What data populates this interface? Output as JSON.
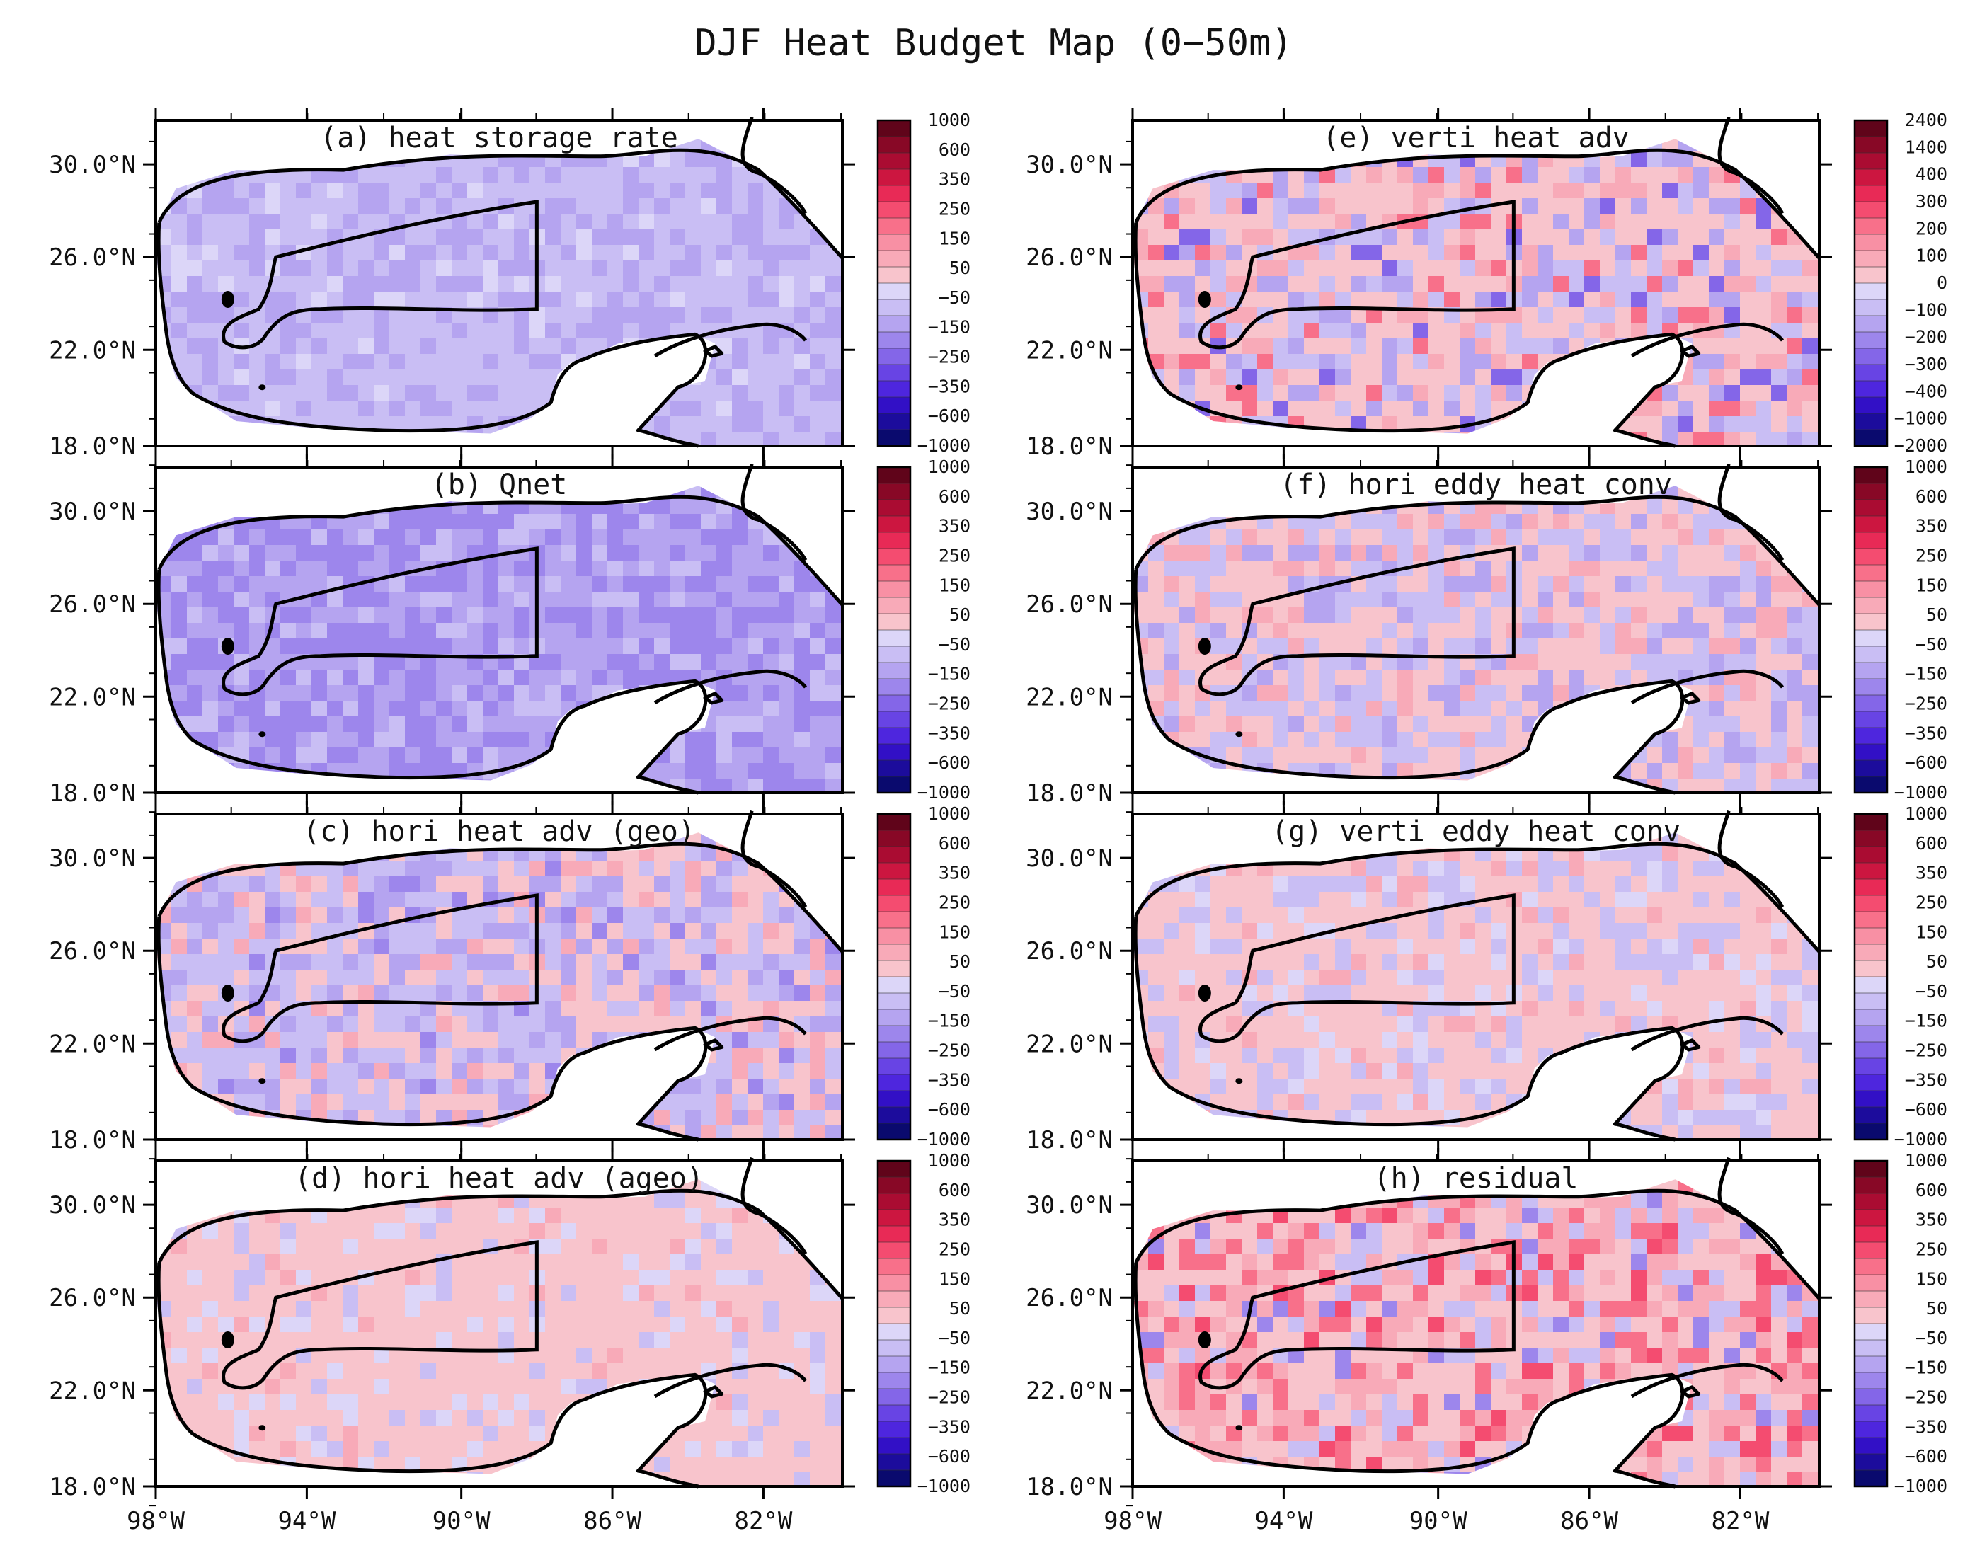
{
  "title": "DJF Heat Budget Map (0−50m)",
  "lat_ticks": [
    "30.0°N",
    "26.0°N",
    "22.0°N",
    "18.0°N"
  ],
  "lon_ticks": [
    "98°W",
    "94°W",
    "90°W",
    "86°W",
    "82°W"
  ],
  "colors": {
    "neg": [
      "#0a0a6e",
      "#1c0c9c",
      "#3210c6",
      "#4e26de",
      "#6844e4",
      "#8466e8",
      "#9d86ec",
      "#b5a4f0",
      "#c9bef4",
      "#dcd6f8"
    ],
    "pos": [
      "#f8c4cc",
      "#f8aab8",
      "#f890a4",
      "#f8708a",
      "#f44c70",
      "#e82a56",
      "#cc1640",
      "#aa0c32",
      "#880826",
      "#60041a"
    ],
    "land": "#ffffff",
    "coast": "#000000"
  },
  "colorbar_std": [
    "1000",
    "600",
    "350",
    "250",
    "150",
    "50",
    "−50",
    "−150",
    "−250",
    "−350",
    "−600",
    "−1000"
  ],
  "colorbar_e": [
    "2400",
    "1400",
    "400",
    "300",
    "200",
    "100",
    "0",
    "−100",
    "−200",
    "−300",
    "−400",
    "−1000",
    "−2000"
  ],
  "panels": [
    {
      "id": "a",
      "title": "(a) heat storage rate",
      "colorbar": "std",
      "pattern": "blue_light"
    },
    {
      "id": "b",
      "title": "(b) Qnet",
      "colorbar": "std",
      "pattern": "blue_dark"
    },
    {
      "id": "c",
      "title": "(c) hori heat adv (geo)",
      "colorbar": "std",
      "pattern": "mixed_blue"
    },
    {
      "id": "d",
      "title": "(d) hori heat adv (ageo)",
      "colorbar": "std",
      "pattern": "pink_light"
    },
    {
      "id": "e",
      "title": "(e) verti heat adv",
      "colorbar": "e",
      "pattern": "mixed_strong"
    },
    {
      "id": "f",
      "title": "(f) hori eddy heat conv",
      "colorbar": "std",
      "pattern": "mixed"
    },
    {
      "id": "g",
      "title": "(g) verti eddy heat conv",
      "colorbar": "std",
      "pattern": "pink_mixed"
    },
    {
      "id": "h",
      "title": "(h) residual",
      "colorbar": "std",
      "pattern": "red_strong"
    }
  ]
}
